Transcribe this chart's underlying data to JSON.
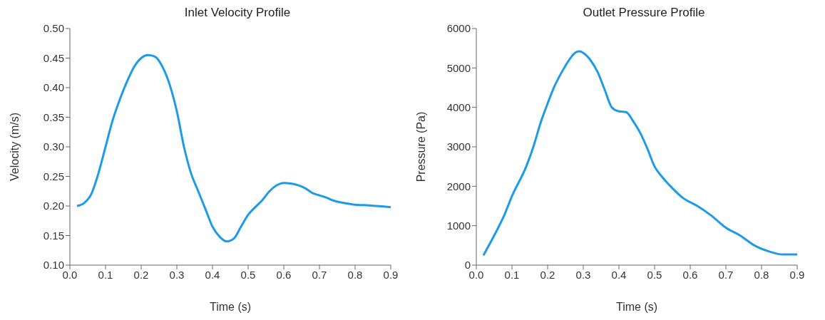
{
  "chart_data": [
    {
      "type": "line",
      "title": "Inlet Velocity Profile",
      "xlabel": "Time (s)",
      "ylabel": "Velocity (m/s)",
      "xlim": [
        0,
        0.9
      ],
      "xticks": [
        {
          "value": 0,
          "label": "0.0"
        },
        0.1,
        0.2,
        0.3,
        0.4,
        0.5,
        0.6,
        0.7,
        0.8,
        0.9
      ],
      "ylim": [
        0.1,
        0.5
      ],
      "yticks": [
        {
          "value": 0.1,
          "label": "0.10"
        },
        0.15,
        {
          "value": 0.2,
          "label": "0.20"
        },
        0.25,
        {
          "value": 0.3,
          "label": "0.30"
        },
        0.35,
        {
          "value": 0.4,
          "label": "0.40"
        },
        0.45,
        {
          "value": 0.5,
          "label": "0.50"
        }
      ],
      "grid": false,
      "legend": false,
      "marker": "none",
      "line_style": "solid",
      "x": [
        0.02,
        0.04,
        0.06,
        0.08,
        0.1,
        0.12,
        0.14,
        0.16,
        0.18,
        0.2,
        0.22,
        0.24,
        0.26,
        0.28,
        0.3,
        0.32,
        0.34,
        0.36,
        0.38,
        0.4,
        0.42,
        0.44,
        0.46,
        0.48,
        0.5,
        0.52,
        0.54,
        0.56,
        0.58,
        0.6,
        0.62,
        0.64,
        0.66,
        0.68,
        0.7,
        0.72,
        0.74,
        0.76,
        0.78,
        0.8,
        0.84,
        0.88,
        0.9
      ],
      "series": [
        {
          "color": "#1e9be8",
          "values": [
            0.2,
            0.205,
            0.22,
            0.255,
            0.3,
            0.345,
            0.38,
            0.41,
            0.435,
            0.45,
            0.455,
            0.452,
            0.435,
            0.405,
            0.36,
            0.3,
            0.255,
            0.225,
            0.195,
            0.165,
            0.148,
            0.14,
            0.145,
            0.165,
            0.185,
            0.198,
            0.21,
            0.225,
            0.235,
            0.239,
            0.238,
            0.235,
            0.23,
            0.222,
            0.218,
            0.214,
            0.209,
            0.206,
            0.204,
            0.202,
            0.201,
            0.199,
            0.198
          ]
        }
      ]
    },
    {
      "type": "line",
      "title": "Outlet Pressure Profile",
      "xlabel": "Time (s)",
      "ylabel": "Pressure (Pa)",
      "xlim": [
        0,
        0.9
      ],
      "xticks": [
        {
          "value": 0,
          "label": "0.0"
        },
        0.1,
        0.2,
        0.3,
        0.4,
        0.5,
        0.6,
        0.7,
        0.8,
        0.9
      ],
      "ylim": [
        0,
        6000
      ],
      "yticks": [
        0,
        1000,
        2000,
        3000,
        4000,
        5000,
        6000
      ],
      "grid": false,
      "legend": false,
      "marker": "none",
      "line_style": "solid",
      "x": [
        0.02,
        0.05,
        0.08,
        0.1,
        0.14,
        0.16,
        0.18,
        0.2,
        0.22,
        0.24,
        0.26,
        0.28,
        0.29,
        0.3,
        0.32,
        0.34,
        0.36,
        0.38,
        0.4,
        0.42,
        0.44,
        0.46,
        0.48,
        0.5,
        0.52,
        0.55,
        0.58,
        0.62,
        0.66,
        0.7,
        0.74,
        0.78,
        0.82,
        0.86,
        0.9
      ],
      "series": [
        {
          "color": "#1e9be8",
          "values": [
            250,
            750,
            1300,
            1750,
            2500,
            3000,
            3600,
            4100,
            4550,
            4900,
            5200,
            5400,
            5420,
            5380,
            5200,
            4900,
            4450,
            4000,
            3900,
            3880,
            3650,
            3350,
            2950,
            2500,
            2250,
            1950,
            1700,
            1500,
            1250,
            950,
            750,
            500,
            350,
            270,
            270
          ]
        }
      ]
    }
  ]
}
